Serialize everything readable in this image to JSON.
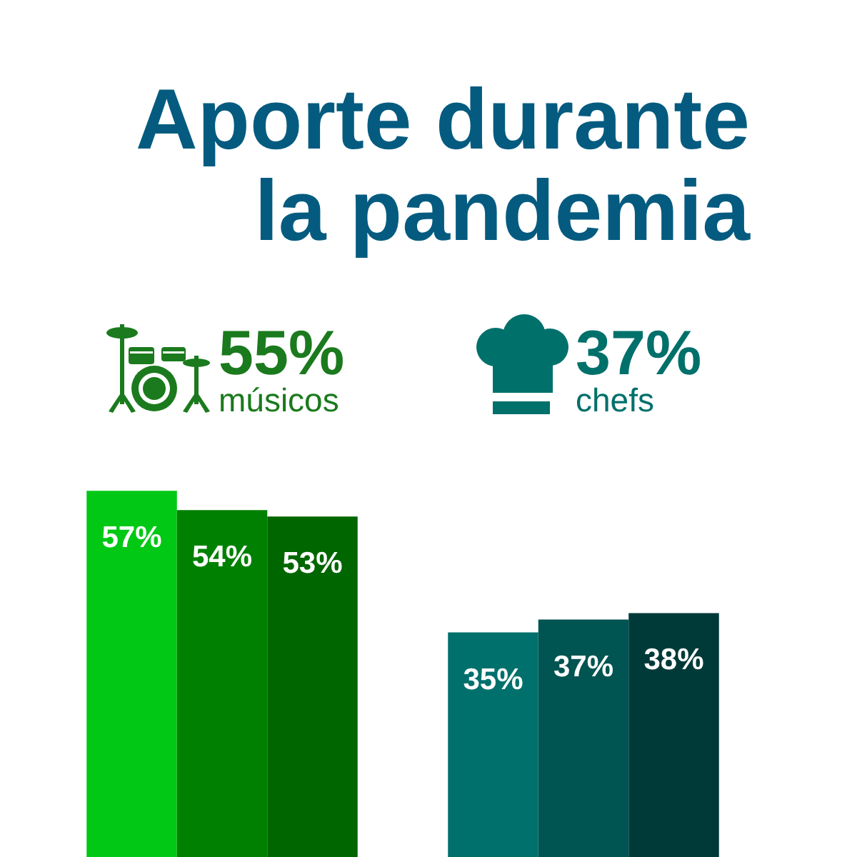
{
  "chart_data": {
    "type": "bar",
    "title": "Aporte durante la pandemia",
    "annotations": [
      "55%",
      "músicos",
      "37%",
      "chefs"
    ],
    "categories": [
      null,
      null
    ],
    "series": [
      {
        "colors": [
          "#00c814",
          "#00706c"
        ],
        "values": [
          57,
          35
        ],
        "value_labels": [
          "57%",
          "35%"
        ]
      },
      {
        "colors": [
          "#008000",
          "#005451"
        ],
        "values": [
          54,
          37
        ],
        "value_labels": [
          "54%",
          "37%"
        ]
      },
      {
        "colors": [
          "#006600",
          "#003a38"
        ],
        "values": [
          53,
          38
        ],
        "value_labels": [
          "53%",
          "38%"
        ]
      }
    ],
    "grid": false,
    "tick_labels": false
  }
}
